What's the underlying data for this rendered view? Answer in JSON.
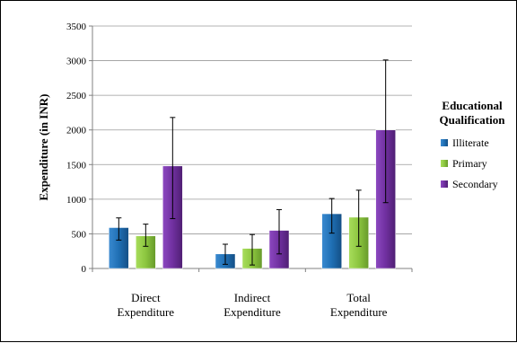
{
  "chart_data": {
    "type": "bar",
    "categories": [
      [
        "Direct",
        "Expenditure"
      ],
      [
        "Indirect",
        "Expenditure"
      ],
      [
        "Total",
        "Expenditure"
      ]
    ],
    "ylabel": "Expenditure (in INR)",
    "xlabel": "",
    "ylim": [
      0,
      3500
    ],
    "yticks": [
      0,
      500,
      1000,
      1500,
      2000,
      2500,
      3000,
      3500
    ],
    "grid": true,
    "legend": {
      "title": [
        "Educational",
        "Qualification"
      ],
      "placement": "right"
    },
    "series": [
      {
        "name": "Illiterate",
        "color": "#1f6fb4",
        "values": [
          590,
          210,
          790
        ],
        "err_low": [
          410,
          60,
          510
        ],
        "err_high": [
          730,
          350,
          1010
        ]
      },
      {
        "name": "Primary",
        "color": "#8cc63f",
        "values": [
          470,
          290,
          740
        ],
        "err_low": [
          320,
          50,
          320
        ],
        "err_high": [
          640,
          490,
          1130
        ]
      },
      {
        "name": "Secondary",
        "color": "#7030a0",
        "values": [
          1480,
          550,
          2000
        ],
        "err_low": [
          720,
          210,
          950
        ],
        "err_high": [
          2180,
          850,
          3010
        ]
      }
    ]
  }
}
